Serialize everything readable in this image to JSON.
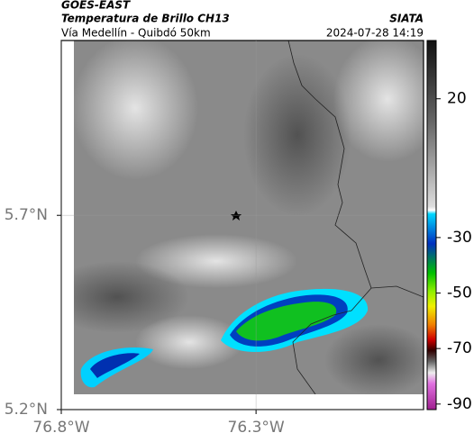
{
  "header": {
    "title": "GOES-EAST",
    "subtitle": "Temperatura de Brillo CH13",
    "location": "Vía Medellín - Quibdó 50km",
    "source": "SIATA",
    "datetime": "2024-07-28 14:19"
  },
  "map": {
    "xlim": [
      -76.8,
      -75.87
    ],
    "ylim": [
      5.2,
      6.15
    ],
    "xticks": [
      {
        "value": -76.8,
        "label": "76.8°W"
      },
      {
        "value": -76.3,
        "label": "76.3°W"
      }
    ],
    "yticks": [
      {
        "value": 5.2,
        "label": "5.2°N"
      },
      {
        "value": 5.7,
        "label": "5.7°N"
      }
    ],
    "grid": true
  },
  "colorbar": {
    "lim": [
      -92,
      41
    ],
    "ticks": [
      20,
      -30,
      -50,
      -70,
      -90
    ]
  }
}
